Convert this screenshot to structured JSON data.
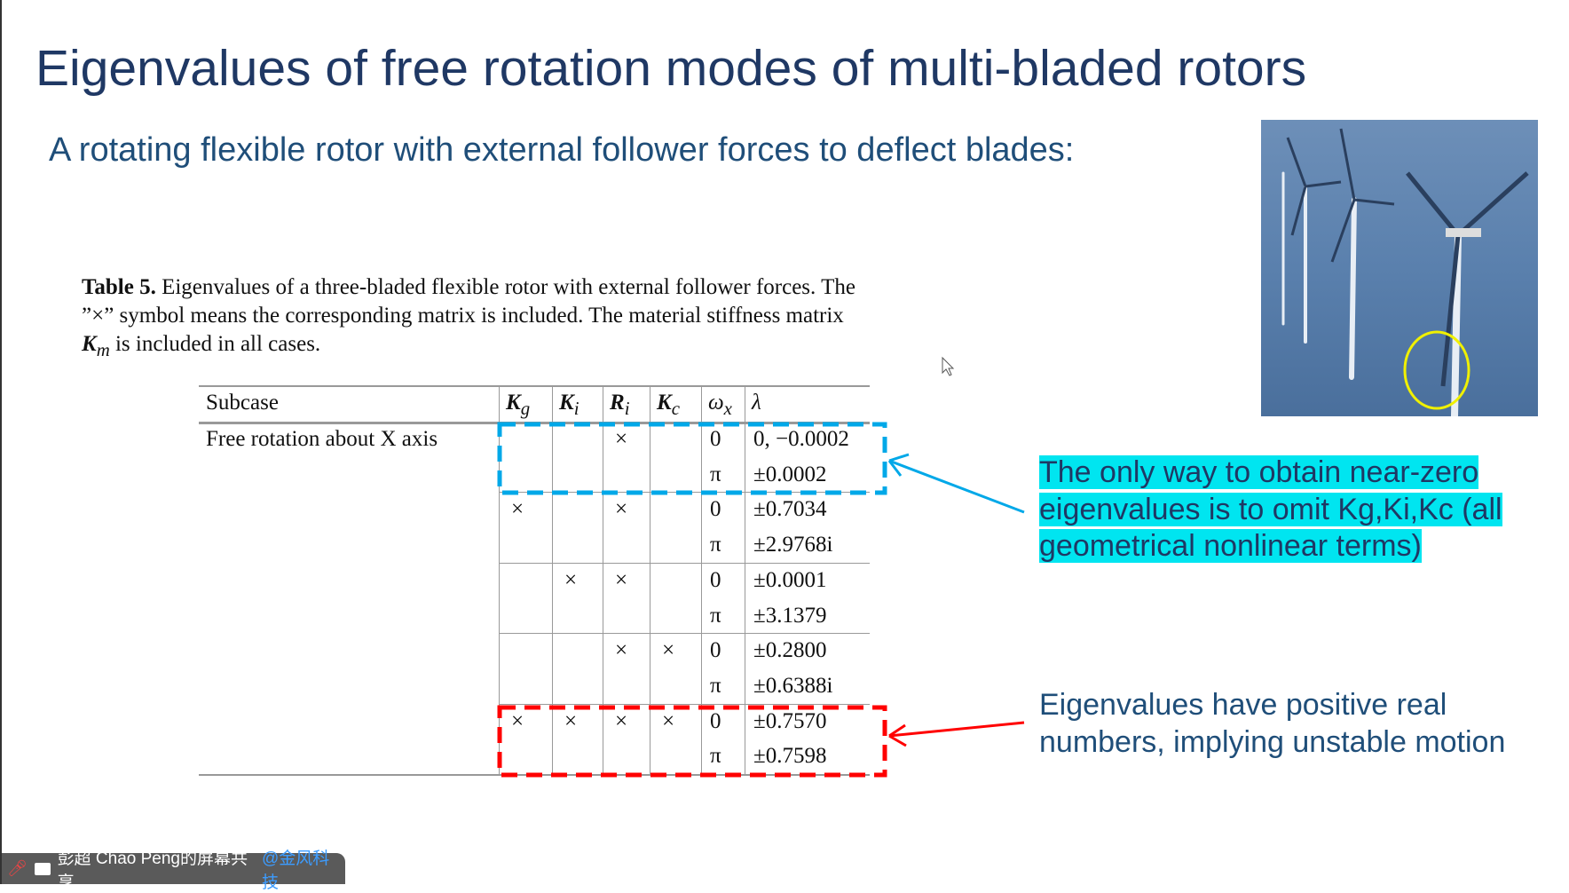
{
  "slide": {
    "title": "Eigenvalues of free rotation modes of multi-bladed rotors",
    "subtitle": "A rotating flexible rotor with external follower forces to deflect blades:",
    "caption": {
      "label": "Table 5.",
      "line1": " Eigenvalues of a three-bladed flexible rotor with external follower forces. The",
      "line2": "”×” symbol means the corresponding matrix is included. The material stiffness matrix",
      "line3_symbol": "K",
      "line3_sub": "m",
      "line3": "  is included in all cases."
    },
    "table": {
      "headers": [
        "Subcase",
        "K",
        "K",
        "R",
        "K",
        "ω",
        "λ"
      ],
      "header_subs": [
        "",
        "g",
        "i",
        "i",
        "c",
        "x",
        ""
      ],
      "subcase": "Free rotation about X axis",
      "rows": [
        [
          "",
          "",
          "×",
          "",
          "0",
          "0, −0.0002"
        ],
        [
          "",
          "",
          "",
          "",
          "π",
          "±0.0002"
        ],
        [
          "×",
          "",
          "×",
          "",
          "0",
          "±0.7034"
        ],
        [
          "",
          "",
          "",
          "",
          "π",
          "±2.9768i"
        ],
        [
          "",
          "×",
          "×",
          "",
          "0",
          "±0.0001"
        ],
        [
          "",
          "",
          "",
          "",
          "π",
          "±3.1379"
        ],
        [
          "",
          "",
          "×",
          "×",
          "0",
          "±0.2800"
        ],
        [
          "",
          "",
          "",
          "",
          "π",
          "±0.6388i"
        ],
        [
          "×",
          "×",
          "×",
          "×",
          "0",
          "±0.7570"
        ],
        [
          "",
          "",
          "",
          "",
          "π",
          "±0.7598"
        ]
      ]
    },
    "note_near_zero": [
      "The only way to obtain near-zero",
      "eigenvalues is to omit Kg,Ki,Kc (all",
      "geometrical nonlinear terms)"
    ],
    "note_unstable": [
      "Eigenvalues have positive real",
      "numbers, implying unstable motion"
    ],
    "colors": {
      "title": "#1f3864",
      "highlight": "#00e5f0",
      "blue_box": "#00a8e8",
      "red_box": "#ff0000"
    }
  },
  "share_bar": {
    "text": "彭超 Chao Peng的屏幕共享",
    "org": "@金风科技",
    "icons": [
      "mic-muted-icon",
      "screen-share-icon"
    ]
  }
}
